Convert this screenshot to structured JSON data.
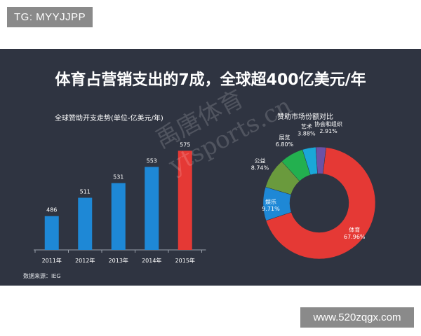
{
  "badges": {
    "tg": "TG: MYYJJPP",
    "site": "www.520zqgx.com"
  },
  "headline": "体育占营销支出的7成，全球超400亿美元/年",
  "source": "数据来源：IEG",
  "watermark": {
    "line1": "禹唐体育",
    "line2": "ytsports.cn"
  },
  "colors": {
    "panel_bg": "#2f3441",
    "bar_blue": "#1e88d6",
    "bar_red": "#e53935"
  },
  "chart_data": [
    {
      "type": "bar",
      "title": "全球赞助开支走势(单位-亿美元/年)",
      "categories": [
        "2011年",
        "2012年",
        "2013年",
        "2014年",
        "2015年"
      ],
      "values": [
        486,
        511,
        531,
        553,
        575
      ],
      "data_labels": [
        "486",
        "511",
        "531",
        "553",
        "575"
      ],
      "highlight_color": "#e53935"
    },
    {
      "type": "pie",
      "title": "赞助市场份额对比",
      "slices": [
        {
          "name": "体育",
          "value": 67.96,
          "value_label": "67.96%",
          "color": "#e53935"
        },
        {
          "name": "娱乐",
          "value": 9.71,
          "value_label": "9.71%",
          "color": "#1e88d6"
        },
        {
          "name": "公益",
          "value": 8.74,
          "value_label": "8.74%",
          "color": "#6a9a3d"
        },
        {
          "name": "展览",
          "value": 6.8,
          "value_label": "6.80%",
          "color": "#23b04f"
        },
        {
          "name": "艺术",
          "value": 3.88,
          "value_label": "3.88%",
          "color": "#1aa7d8"
        },
        {
          "name": "协会和组织",
          "value": 2.91,
          "value_label": "2.91%",
          "color": "#6c52a6"
        }
      ]
    }
  ]
}
